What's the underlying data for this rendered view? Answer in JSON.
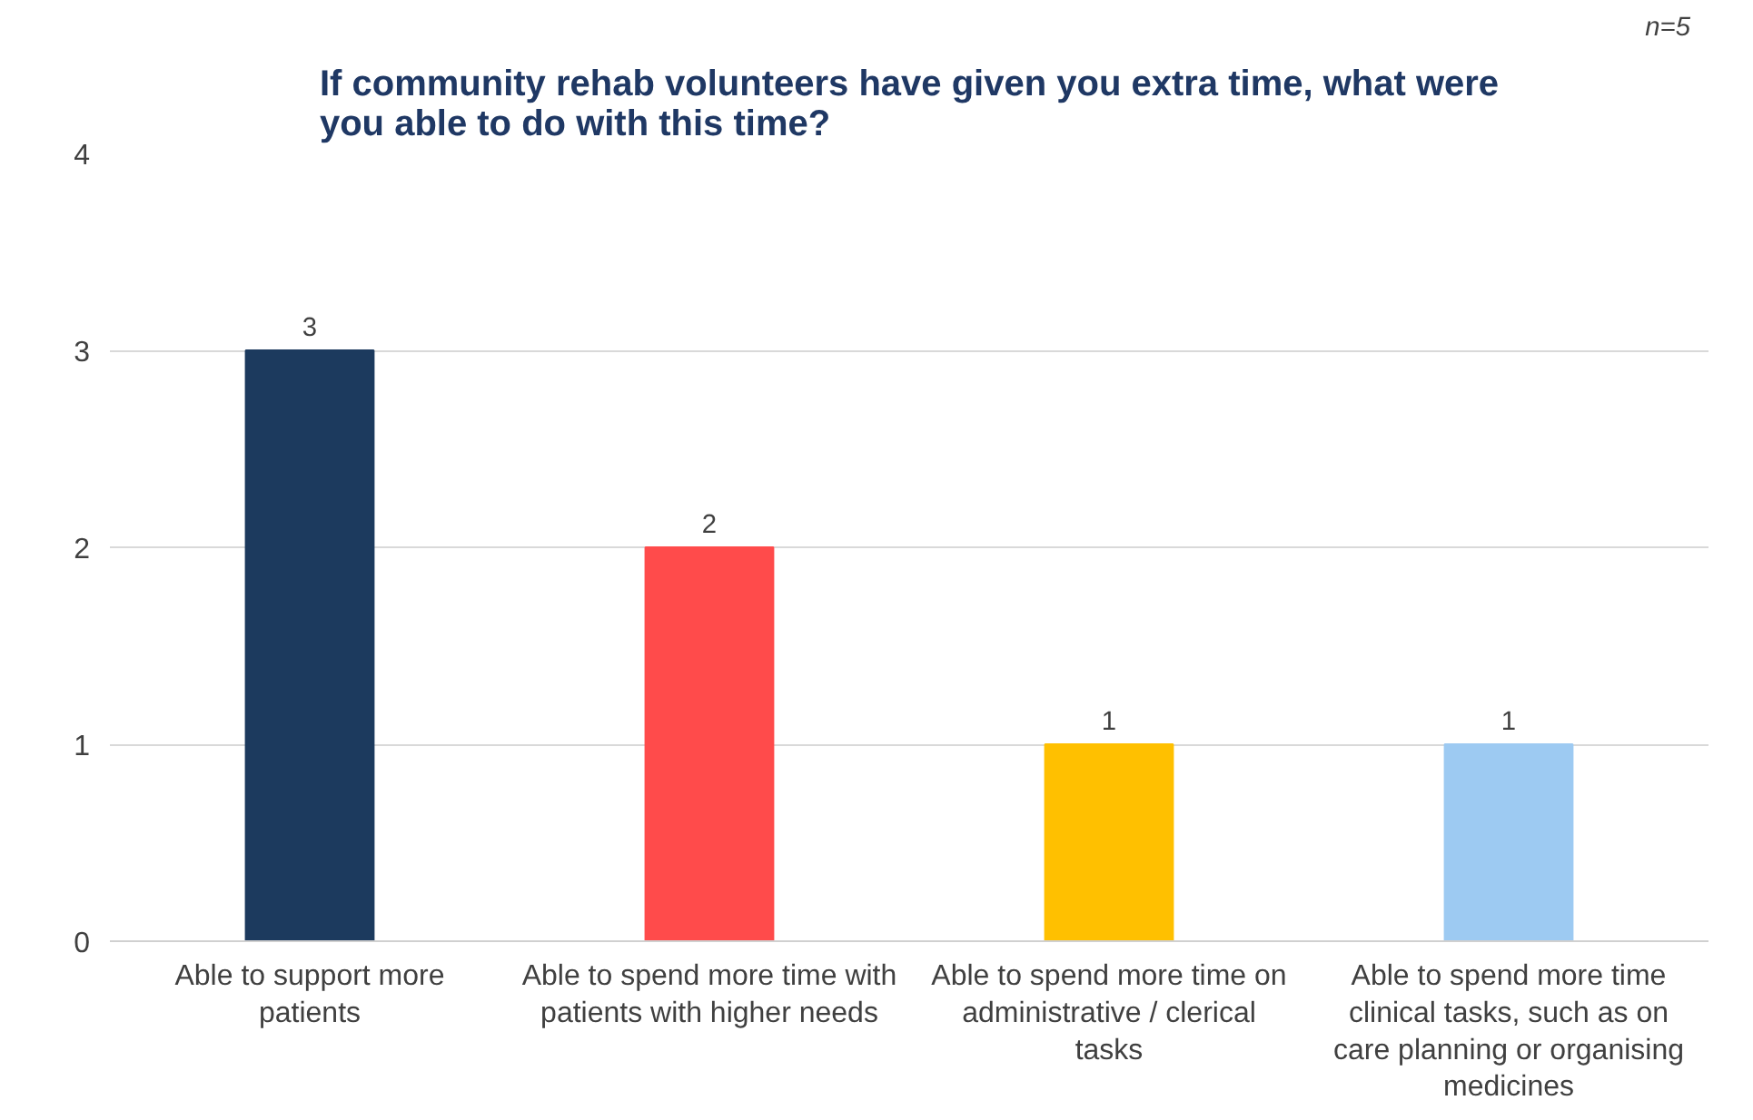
{
  "chart_data": {
    "type": "bar",
    "title": "If community rehab volunteers have given you extra time, what were you able to do with this time?",
    "categories": [
      "Able to support more patients",
      "Able to spend more time with patients with higher needs",
      "Able to spend more time on administrative / clerical tasks",
      "Able to spend more time clinical tasks, such as on care planning or organising medicines"
    ],
    "values": [
      3,
      2,
      1,
      1
    ],
    "colors": [
      "#1c3a5e",
      "#ff4b4b",
      "#ffc000",
      "#9dcaf2"
    ],
    "ylim": [
      0,
      4
    ],
    "yticks": [
      0,
      1,
      2,
      3,
      4
    ],
    "grid": "y",
    "data_labels": true,
    "annotations": [
      "n=5"
    ]
  }
}
